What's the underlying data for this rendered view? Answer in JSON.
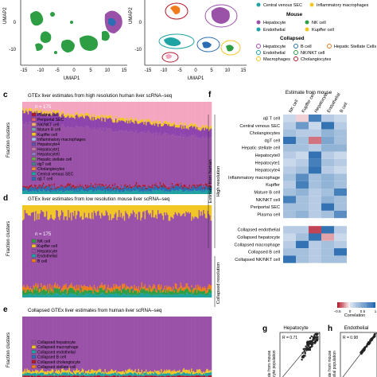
{
  "panel_top": {
    "umap_left": {
      "ylabel": "UMAP2",
      "xlabel": "UMAP1",
      "xticks": [
        "-15",
        "-10",
        "-5",
        "0",
        "5",
        "10",
        "15"
      ],
      "yticks": [
        "0",
        "-10"
      ]
    },
    "umap_right": {
      "ylabel": "UMAP2",
      "xlabel": "UMAP1",
      "xticks": [
        "-15",
        "-10",
        "-5",
        "0",
        "5",
        "10",
        "15"
      ],
      "yticks": [
        "0",
        "-10"
      ]
    },
    "legend_top": {
      "items": [
        "Central venous SEC",
        "Inflammatory macrophages"
      ]
    },
    "legend_mouse": {
      "title": "Mouse",
      "items": [
        "Hepatocyte",
        "Endothelial",
        "NK cell",
        "Kupffer cell"
      ]
    },
    "legend_collapsed": {
      "title": "Collapsed",
      "items": [
        "Hepatocyte",
        "Endothelial",
        "Macrophages",
        "B cell",
        "NK/NKT cell",
        "Cholangiocytes",
        "Hepatic Stellate Cells"
      ]
    }
  },
  "panel_c": {
    "letter": "c",
    "title": "GTEx liver estimates from high resolution human liver scRNA–seq",
    "ylabel": "Fraction clusters",
    "n_label": "n = 175",
    "legend": [
      "Plasma cell",
      "Periportal SEC",
      "NK/NKT cell",
      "Mature B cell",
      "Kupffer cell",
      "Inflammatory macrophages",
      "Hepatocyte4",
      "Hepatocyte1",
      "Hepatocyte0",
      "Hepatic stellate cell",
      "dgT cell",
      "Cholangiocytes",
      "Central venous SEC",
      "αβ T cell"
    ]
  },
  "panel_d": {
    "letter": "d",
    "title": "GTEx liver estimates from low resolution mouse liver scRNA–seq",
    "ylabel": "Fraction clusters",
    "n_label": "n = 175",
    "legend": [
      "NK cell",
      "Kupffer cell",
      "Hepatocyte",
      "Endothelial",
      "B cell"
    ]
  },
  "panel_e": {
    "letter": "e",
    "title": "Collapsed GTEx liver estimates from human liver scRNA–seq",
    "ylabel": "Fraction clusters",
    "n_label": "n = 175",
    "legend": [
      "Collapsed hepatocyte",
      "Collapsed macrophage",
      "Collapsed endothelial",
      "Collapsed B cell",
      "Collapsed cholangiocyte",
      "Collapsed stellate cell"
    ]
  },
  "panel_f": {
    "letter": "f",
    "top_label": "Estimate from mouse",
    "columns": [
      "NK cell",
      "Kupffer cell",
      "Hepatocyte",
      "Endothelial",
      "B cell"
    ],
    "rows": [
      "αβ T cell",
      "Central venous SEC",
      "Cholangiocytes",
      "dgT cell",
      "Hepatic stellate cell",
      "Hepatocyte0",
      "Hepatocyte1",
      "Hepatocyte4",
      "Inflammatory macrophage",
      "Kupffer",
      "Mature B cell",
      "NK/NKT cell",
      "Periportal SEC",
      "Plasma cell",
      "Collapsed endothelial",
      "Collapsed hepatocyte",
      "Collapsed macrophage",
      "Collapsed B cell",
      "Collapsed NK/NKT cell"
    ],
    "group_labels": {
      "high": "High resolution",
      "collapsed": "Collapsed resolution",
      "outer": "Estimate from human"
    },
    "colorbar": {
      "label": "Correlation",
      "ticks": [
        "−0.5",
        "0",
        "0.5",
        "1"
      ]
    }
  },
  "panel_g": {
    "letter": "g",
    "title": "Hepatocyte",
    "r_label": "R = 0.71",
    "ylabel": "mate from mouse\nhocyte population"
  },
  "panel_h": {
    "letter": "h",
    "title": "Endothelial",
    "r_label": "R = 0.98",
    "ylabel": "mate from mouse\nthelial population"
  },
  "colors": {
    "purple": "#9a52a8",
    "yellow": "#f2c624",
    "green": "#2e9e45",
    "pink": "#f4a6c0",
    "blue": "#2b6db3",
    "red": "#b2182b",
    "teal": "#1fa3a3",
    "orange": "#f07d1d"
  },
  "heatmap_values": [
    [
      0.1,
      -0.1,
      0.8,
      0.2,
      0.1
    ],
    [
      0.2,
      0.6,
      0.1,
      0.9,
      0.2
    ],
    [
      0.3,
      0.2,
      0.2,
      0.4,
      0.3
    ],
    [
      0.9,
      0.3,
      -0.3,
      0.5,
      0.3
    ],
    [
      0.3,
      0.3,
      0.2,
      0.4,
      0.4
    ],
    [
      0.2,
      0.1,
      0.9,
      0.2,
      0.1
    ],
    [
      0.1,
      0.2,
      0.8,
      0.3,
      0.2
    ],
    [
      0.2,
      0.3,
      0.9,
      0.2,
      0.1
    ],
    [
      0.3,
      0.7,
      0.3,
      0.4,
      0.3
    ],
    [
      0.2,
      0.8,
      0.3,
      0.4,
      0.3
    ],
    [
      0.3,
      0.4,
      0.2,
      0.3,
      0.8
    ],
    [
      0.8,
      0.3,
      0.2,
      0.4,
      0.3
    ],
    [
      0.3,
      0.3,
      0.2,
      0.9,
      0.3
    ],
    [
      0.3,
      0.4,
      0.2,
      0.3,
      0.7
    ],
    [
      0.2,
      0.2,
      -0.4,
      0.9,
      0.2
    ],
    [
      0.1,
      0.3,
      0.9,
      -0.2,
      0.1
    ],
    [
      0.2,
      0.9,
      0.2,
      0.3,
      0.2
    ],
    [
      0.3,
      0.3,
      0.2,
      0.3,
      0.9
    ],
    [
      0.9,
      0.3,
      0.2,
      0.3,
      0.3
    ]
  ]
}
